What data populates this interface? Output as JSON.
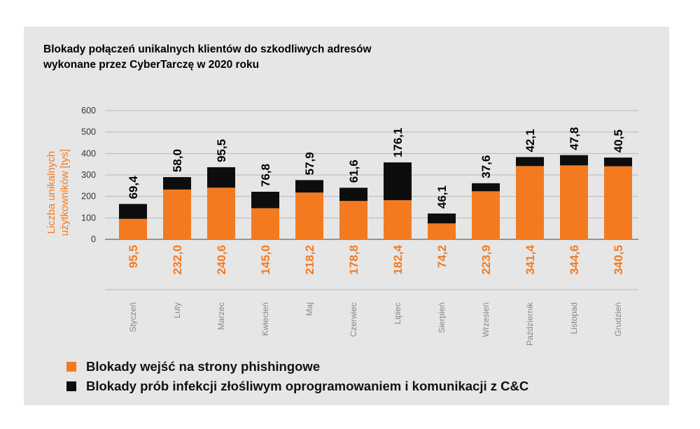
{
  "colors": {
    "phishing": "#f47a20",
    "malware": "#0d0d0d",
    "axis": "#444444",
    "grid": "#b8b8b8",
    "month": "#888888",
    "ylabel": "#f47a20"
  },
  "chart_data": {
    "type": "bar",
    "stacked": true,
    "title": "Blokady połączeń unikalnych klientów do szkodliwych adresów wykonane przez CyberTarczę w 2020 roku",
    "title_lines": [
      "Blokady połączeń unikalnych klientów do szkodliwych adresów",
      "wykonane przez CyberTarczę w 2020 roku"
    ],
    "ylabel_lines": [
      "Liczba unikalnych",
      "użytkowników [tys]"
    ],
    "ylim": [
      0,
      600
    ],
    "yticks": [
      0,
      100,
      200,
      300,
      400,
      500,
      600
    ],
    "grid": true,
    "legend_position": "bottom-left",
    "categories": [
      "Styczeń",
      "Luty",
      "Marzec",
      "Kwiecień",
      "Maj",
      "Czerwiec",
      "Lipiec",
      "Sierpień",
      "Wrzesień",
      "Październik",
      "Listopad",
      "Grudzień"
    ],
    "series": [
      {
        "name": "Blokady wejść na strony phishingowe",
        "values": [
          95.5,
          232.0,
          240.6,
          145.0,
          218.2,
          178.8,
          182.4,
          74.2,
          223.9,
          341.4,
          344.6,
          340.5
        ],
        "labels": [
          "95,5",
          "232,0",
          "240,6",
          "145,0",
          "218,2",
          "178,8",
          "182,4",
          "74,2",
          "223,9",
          "341,4",
          "344,6",
          "340,5"
        ]
      },
      {
        "name": "Blokady prób infekcji złośliwym oprogramowaniem i komunikacji z C&C",
        "values": [
          69.4,
          58.0,
          95.5,
          76.8,
          57.9,
          61.6,
          176.1,
          46.1,
          37.6,
          42.1,
          47.8,
          40.5
        ],
        "labels": [
          "69,4",
          "58,0",
          "95,5",
          "76,8",
          "57,9",
          "61,6",
          "176,1",
          "46,1",
          "37,6",
          "42,1",
          "47,8",
          "40,5"
        ]
      }
    ]
  }
}
